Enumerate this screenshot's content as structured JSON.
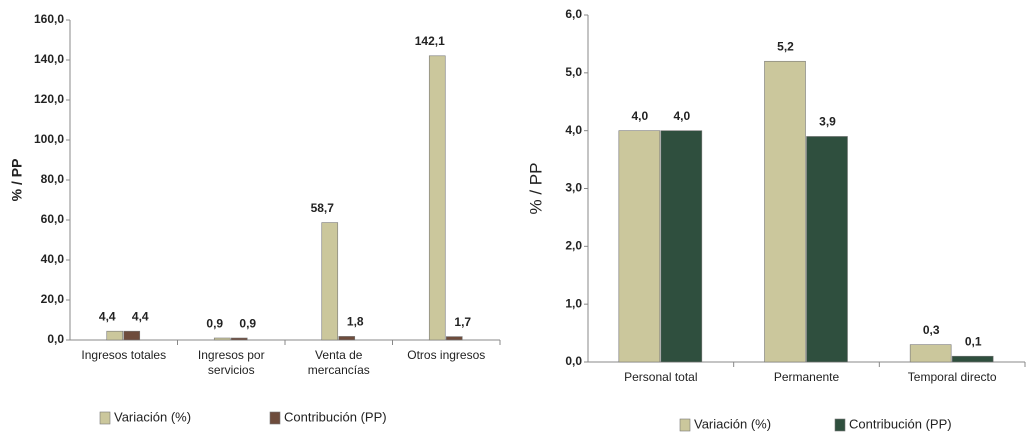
{
  "chart_data": [
    {
      "type": "bar",
      "y_label": "% / PP",
      "categories": [
        "Ingresos totales",
        "Ingresos por servicios",
        "Venta de mercancías",
        "Otros ingresos"
      ],
      "series": [
        {
          "name": "Variación (%)",
          "color": "#cbc79c",
          "values": [
            4.4,
            0.9,
            58.7,
            142.1
          ],
          "value_labels": [
            "4,4",
            "0,9",
            "58,7",
            "142,1"
          ]
        },
        {
          "name": "Contribución (PP)",
          "color": "#6e4c3c",
          "values": [
            4.4,
            0.9,
            1.8,
            1.7
          ],
          "value_labels": [
            "4,4",
            "0,9",
            "1,8",
            "1,7"
          ]
        }
      ],
      "ylim": [
        0,
        160
      ],
      "yticks": [
        {
          "value": 0,
          "label": "0,0"
        },
        {
          "value": 20,
          "label": "20,0"
        },
        {
          "value": 40,
          "label": "40,0"
        },
        {
          "value": 60,
          "label": "60,0"
        },
        {
          "value": 80,
          "label": "80,0"
        },
        {
          "value": 100,
          "label": "100,0"
        },
        {
          "value": 120,
          "label": "120,0"
        },
        {
          "value": 140,
          "label": "140,0"
        },
        {
          "value": 160,
          "label": "160,0"
        }
      ],
      "grid": false,
      "legend": "bottom"
    },
    {
      "type": "bar",
      "y_label": "% / PP",
      "categories": [
        "Personal total",
        "Permanente",
        "Temporal directo"
      ],
      "series": [
        {
          "name": "Variación (%)",
          "color": "#cbc79c",
          "values": [
            4.0,
            5.2,
            0.3
          ],
          "value_labels": [
            "4,0",
            "5,2",
            "0,3"
          ]
        },
        {
          "name": "Contribución (PP)",
          "color": "#2f4f3e",
          "values": [
            4.0,
            3.9,
            0.1
          ],
          "value_labels": [
            "4,0",
            "3,9",
            "0,1"
          ]
        }
      ],
      "ylim": [
        0,
        6
      ],
      "yticks": [
        {
          "value": 0,
          "label": "0,0"
        },
        {
          "value": 1,
          "label": "1,0"
        },
        {
          "value": 2,
          "label": "2,0"
        },
        {
          "value": 3,
          "label": "3,0"
        },
        {
          "value": 4,
          "label": "4,0"
        },
        {
          "value": 5,
          "label": "5,0"
        },
        {
          "value": 6,
          "label": "6,0"
        }
      ],
      "grid": false,
      "legend": "bottom"
    }
  ]
}
